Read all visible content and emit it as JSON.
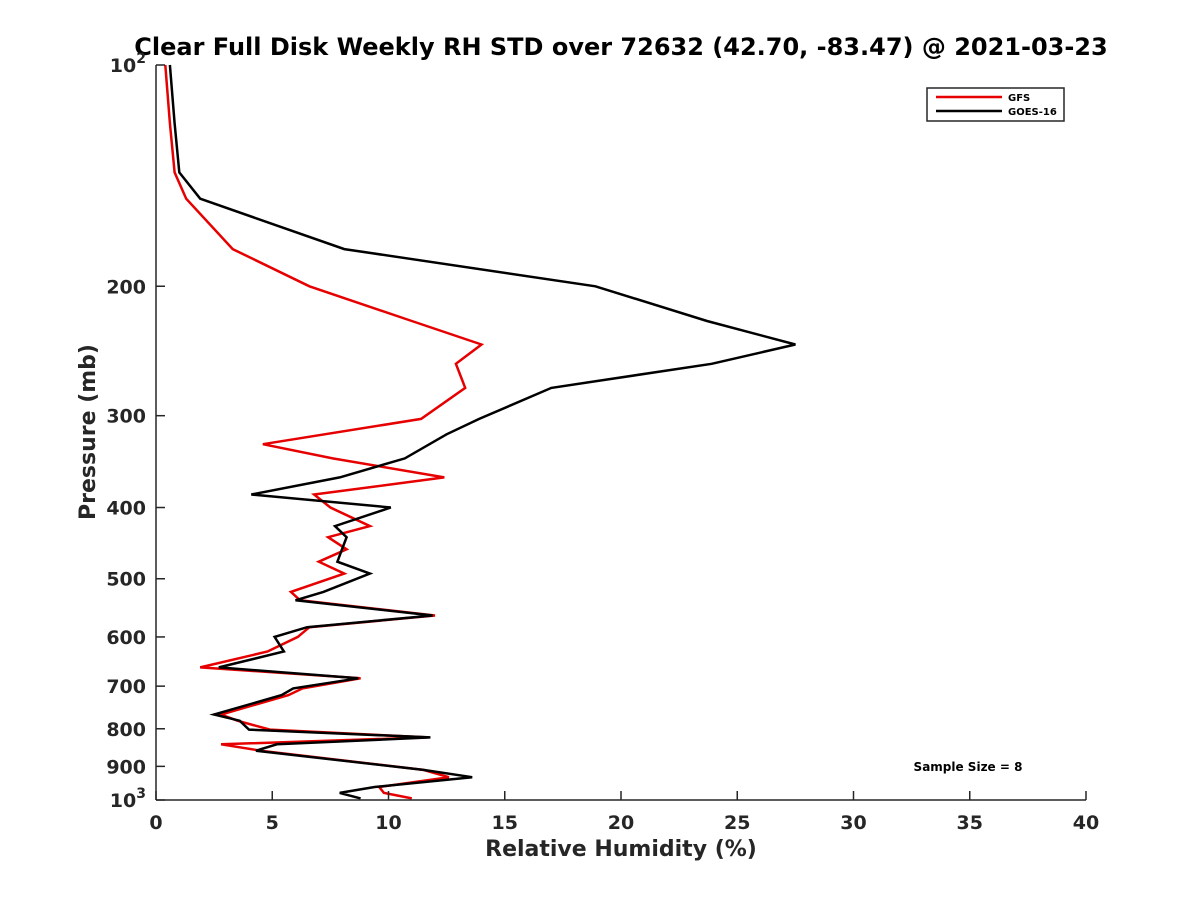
{
  "chart_data": {
    "type": "line",
    "title": "Clear Full Disk Weekly RH STD over 72632 (42.70, -83.47) @ 2021-03-23",
    "xlabel": "Relative Humidity (%)",
    "ylabel": "Pressure (mb)",
    "xlim": [
      0,
      40
    ],
    "ylim": [
      100,
      1000
    ],
    "yscale": "log",
    "y_reversed": true,
    "grid": false,
    "legend_placement": "top-right",
    "x_ticks": [
      "0",
      "5",
      "10",
      "15",
      "20",
      "25",
      "30",
      "35",
      "40"
    ],
    "x_tick_values": [
      0,
      5,
      10,
      15,
      20,
      25,
      30,
      35,
      40
    ],
    "y_ticks": [
      {
        "value": 100,
        "base": "10",
        "exp": "2"
      },
      {
        "value": 200,
        "label": "200"
      },
      {
        "value": 300,
        "label": "300"
      },
      {
        "value": 400,
        "label": "400"
      },
      {
        "value": 500,
        "label": "500"
      },
      {
        "value": 600,
        "label": "600"
      },
      {
        "value": 700,
        "label": "700"
      },
      {
        "value": 800,
        "label": "800"
      },
      {
        "value": 900,
        "label": "900"
      },
      {
        "value": 1000,
        "base": "10",
        "exp": "3"
      }
    ],
    "annotation": "Sample Size = 8",
    "series": [
      {
        "name": "GFS",
        "color": "#e60000",
        "points": [
          [
            0.4,
            100
          ],
          [
            0.6,
            120
          ],
          [
            0.8,
            140
          ],
          [
            1.3,
            152
          ],
          [
            3.3,
            178
          ],
          [
            6.6,
            200
          ],
          [
            11.0,
            223
          ],
          [
            14.0,
            240
          ],
          [
            12.9,
            255
          ],
          [
            13.3,
            275
          ],
          [
            11.4,
            303
          ],
          [
            4.6,
            328
          ],
          [
            7.6,
            343
          ],
          [
            12.4,
            364
          ],
          [
            6.8,
            384
          ],
          [
            7.5,
            400
          ],
          [
            9.2,
            424
          ],
          [
            7.4,
            439
          ],
          [
            8.2,
            456
          ],
          [
            7.0,
            474
          ],
          [
            8.1,
            492
          ],
          [
            5.8,
            521
          ],
          [
            6.2,
            535
          ],
          [
            12.0,
            561
          ],
          [
            6.6,
            582
          ],
          [
            6.1,
            600
          ],
          [
            4.8,
            628
          ],
          [
            1.9,
            660
          ],
          [
            8.8,
            683
          ],
          [
            6.3,
            705
          ],
          [
            5.7,
            720
          ],
          [
            2.8,
            765
          ],
          [
            3.5,
            780
          ],
          [
            4.9,
            802
          ],
          [
            11.7,
            822
          ],
          [
            2.8,
            840
          ],
          [
            4.5,
            857
          ],
          [
            11.5,
            910
          ],
          [
            12.6,
            931
          ],
          [
            9.6,
            960
          ],
          [
            9.8,
            978
          ],
          [
            11.0,
            995
          ]
        ]
      },
      {
        "name": "GOES-16",
        "color": "#000000",
        "points": [
          [
            0.6,
            100
          ],
          [
            0.8,
            120
          ],
          [
            1.0,
            140
          ],
          [
            1.9,
            152
          ],
          [
            8.1,
            178
          ],
          [
            18.9,
            200
          ],
          [
            23.7,
            223
          ],
          [
            27.5,
            240
          ],
          [
            23.9,
            255
          ],
          [
            17.0,
            275
          ],
          [
            13.9,
            303
          ],
          [
            12.5,
            318
          ],
          [
            10.7,
            343
          ],
          [
            7.9,
            364
          ],
          [
            4.1,
            384
          ],
          [
            10.1,
            400
          ],
          [
            7.7,
            424
          ],
          [
            8.2,
            439
          ],
          [
            8.0,
            456
          ],
          [
            7.8,
            474
          ],
          [
            9.2,
            492
          ],
          [
            7.2,
            521
          ],
          [
            6.0,
            535
          ],
          [
            11.9,
            561
          ],
          [
            6.5,
            582
          ],
          [
            5.1,
            600
          ],
          [
            5.5,
            628
          ],
          [
            2.7,
            660
          ],
          [
            8.7,
            683
          ],
          [
            5.9,
            705
          ],
          [
            5.4,
            720
          ],
          [
            2.5,
            765
          ],
          [
            3.6,
            780
          ],
          [
            4.0,
            802
          ],
          [
            11.8,
            822
          ],
          [
            5.2,
            840
          ],
          [
            4.3,
            857
          ],
          [
            11.5,
            910
          ],
          [
            13.6,
            931
          ],
          [
            9.4,
            960
          ],
          [
            7.9,
            978
          ],
          [
            8.8,
            995
          ]
        ]
      }
    ]
  }
}
